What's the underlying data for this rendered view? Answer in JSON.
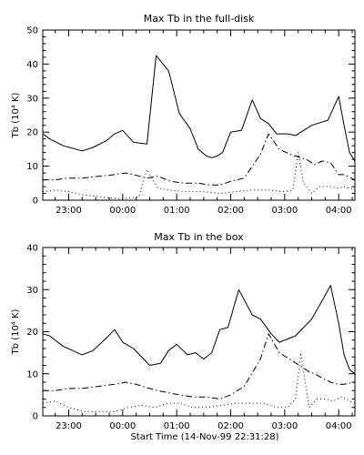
{
  "figure": {
    "xlabel": "Start Time (14-Nov-99 22:31:28)"
  },
  "chart_data": [
    {
      "type": "line",
      "title": "Max Tb in the full-disk",
      "ylabel": "Tb (10⁴ K)",
      "xlim_hours": [
        22.52,
        28.3
      ],
      "ylim": [
        0,
        50
      ],
      "yticks": [
        0,
        10,
        20,
        30,
        40,
        50
      ],
      "xtick_labels": [
        "23:00",
        "00:00",
        "01:00",
        "02:00",
        "03:00",
        "04:00"
      ],
      "grid": false,
      "series": [
        {
          "style": "solid",
          "x": [
            22.52,
            22.65,
            22.9,
            23.25,
            23.45,
            23.7,
            23.85,
            24.0,
            24.2,
            24.45,
            24.62,
            24.85,
            25.05,
            25.25,
            25.4,
            25.55,
            25.65,
            25.75,
            25.85,
            26.0,
            26.2,
            26.4,
            26.55,
            26.7,
            26.85,
            27.05,
            27.2,
            27.5,
            27.8,
            28.0,
            28.1,
            28.2,
            28.3
          ],
          "y": [
            19.5,
            18,
            16,
            14.5,
            15.5,
            17.5,
            19.5,
            20.5,
            17,
            16.5,
            42.5,
            38,
            25.5,
            21,
            15,
            13,
            12.5,
            13,
            14,
            20,
            20.5,
            29.5,
            24,
            22.5,
            19.5,
            19.5,
            19,
            22,
            23.5,
            30.5,
            22,
            14,
            11.5
          ]
        },
        {
          "style": "dash-dot",
          "x": [
            22.52,
            22.75,
            23.0,
            23.25,
            23.55,
            23.85,
            24.05,
            24.2,
            24.45,
            24.65,
            24.9,
            25.15,
            25.4,
            25.6,
            25.8,
            26.0,
            26.25,
            26.55,
            26.7,
            26.9,
            27.1,
            27.4,
            27.55,
            27.7,
            27.85,
            28.0,
            28.1,
            28.3
          ],
          "y": [
            6,
            6,
            6.5,
            6.5,
            7,
            7.5,
            8,
            7.5,
            6.5,
            7,
            5.5,
            5,
            5,
            4.5,
            4.5,
            5.5,
            6.5,
            13.5,
            19.5,
            15,
            13.5,
            12,
            10.5,
            11.5,
            11,
            7.5,
            7.5,
            6
          ]
        },
        {
          "style": "dotted",
          "x": [
            22.52,
            22.75,
            23.0,
            23.3,
            23.6,
            23.85,
            24.05,
            24.3,
            24.45,
            24.65,
            24.85,
            25.2,
            25.5,
            25.8,
            26.1,
            26.4,
            26.7,
            27.0,
            27.15,
            27.25,
            27.35,
            27.5,
            27.65,
            27.85,
            28.0,
            28.1,
            28.2,
            28.3
          ],
          "y": [
            2.5,
            3,
            2.5,
            1.5,
            1,
            0.5,
            0.5,
            1,
            9,
            3.5,
            3,
            2.5,
            2.5,
            2,
            2.5,
            3,
            3,
            2.5,
            3,
            14,
            5,
            2,
            4,
            4,
            3.5,
            4,
            3.5,
            3.5
          ]
        }
      ]
    },
    {
      "type": "line",
      "title": "Max Tb in the box",
      "ylabel": "Tb (10⁴ K)",
      "xlim_hours": [
        22.52,
        28.3
      ],
      "ylim": [
        0,
        40
      ],
      "yticks": [
        0,
        10,
        20,
        30,
        40
      ],
      "xtick_labels": [
        "23:00",
        "00:00",
        "01:00",
        "02:00",
        "03:00",
        "04:00"
      ],
      "grid": false,
      "series": [
        {
          "style": "solid",
          "x": [
            22.52,
            22.65,
            22.9,
            23.25,
            23.45,
            23.7,
            23.85,
            24.0,
            24.2,
            24.5,
            24.7,
            24.85,
            25.0,
            25.2,
            25.35,
            25.5,
            25.65,
            25.8,
            25.95,
            26.15,
            26.4,
            26.55,
            26.75,
            26.9,
            27.2,
            27.5,
            27.7,
            27.85,
            28.0,
            28.1,
            28.2,
            28.3
          ],
          "y": [
            19.5,
            19,
            16.5,
            14.5,
            15.5,
            18.5,
            20.5,
            17.5,
            16,
            12,
            12.5,
            15.5,
            17,
            14.5,
            15,
            13.5,
            15,
            20.5,
            21,
            30,
            24,
            23,
            19.5,
            17.5,
            19,
            23,
            27.5,
            31,
            22,
            14.5,
            11,
            10
          ]
        },
        {
          "style": "dash-dot",
          "x": [
            22.52,
            22.75,
            23.0,
            23.25,
            23.55,
            23.85,
            24.05,
            24.25,
            24.5,
            24.65,
            24.85,
            25.05,
            25.3,
            25.55,
            25.8,
            26.0,
            26.25,
            26.55,
            26.7,
            26.9,
            27.15,
            27.45,
            27.55,
            27.7,
            27.85,
            28.0,
            28.1,
            28.3
          ],
          "y": [
            6,
            6,
            6.5,
            6.5,
            7,
            7.5,
            8,
            7.5,
            6.5,
            6,
            5.5,
            5,
            4.5,
            4.5,
            4,
            5,
            7,
            13.5,
            19.5,
            15,
            13,
            10.5,
            10,
            9,
            8,
            7.5,
            7.5,
            8
          ]
        },
        {
          "style": "dotted",
          "x": [
            22.52,
            22.75,
            23.0,
            23.3,
            23.55,
            23.85,
            24.1,
            24.35,
            24.6,
            24.85,
            25.05,
            25.3,
            25.55,
            25.85,
            26.1,
            26.35,
            26.6,
            26.85,
            27.05,
            27.2,
            27.3,
            27.45,
            27.6,
            27.75,
            27.9,
            28.05,
            28.2,
            28.3
          ],
          "y": [
            3,
            3.5,
            2,
            1,
            1,
            1,
            2,
            2.5,
            2,
            3,
            3,
            2,
            2,
            2.5,
            3,
            3,
            3,
            2,
            2,
            4,
            15,
            2,
            4,
            4,
            3.5,
            4.5,
            3.5,
            3
          ]
        }
      ]
    }
  ]
}
